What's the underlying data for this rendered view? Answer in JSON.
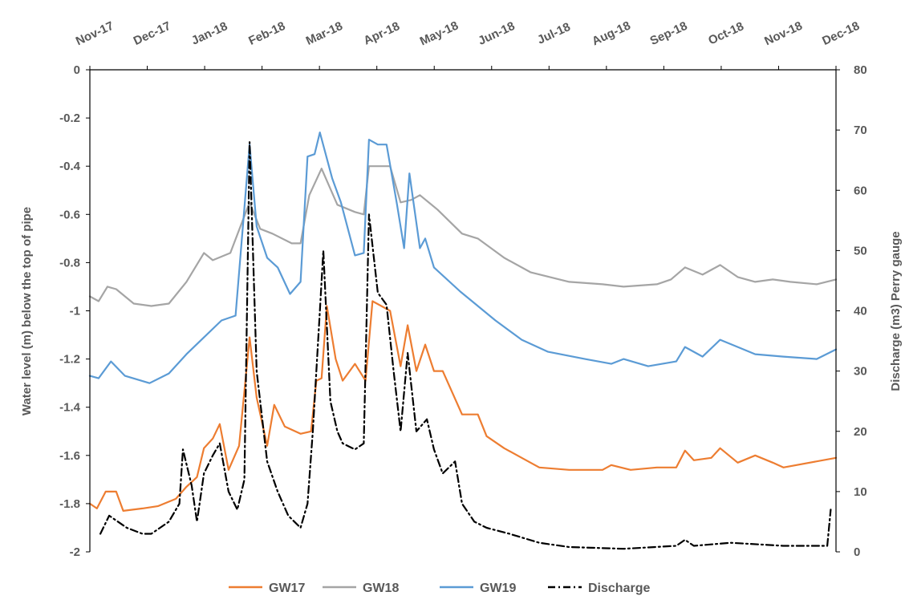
{
  "chart_data": {
    "type": "line",
    "title": "",
    "x_ticks": [
      "Nov-17",
      "Dec-17",
      "Jan-18",
      "Feb-18",
      "Mar-18",
      "Apr-18",
      "May-18",
      "Jun-18",
      "Jul-18",
      "Aug-18",
      "Sep-18",
      "Oct-18",
      "Nov-18",
      "Dec-18"
    ],
    "x_range": [
      "2017-11-01",
      "2018-12-31"
    ],
    "left_axis": {
      "label": "Water level (m) below the top of pipe",
      "ylim": [
        -2,
        0
      ],
      "ticks": [
        "0",
        "-0.2",
        "-0.4",
        "-0.6",
        "-0.8",
        "-1",
        "-1.2",
        "-1.4",
        "-1.6",
        "-1.8",
        "-2"
      ],
      "tick_values": [
        0,
        -0.2,
        -0.4,
        -0.6,
        -0.8,
        -1,
        -1.2,
        -1.4,
        -1.6,
        -1.8,
        -2
      ]
    },
    "right_axis": {
      "label": "Discharge (m3) Perry gauge",
      "ylim": [
        0,
        80
      ],
      "ticks": [
        "0",
        "10",
        "20",
        "30",
        "40",
        "50",
        "60",
        "70",
        "80"
      ],
      "tick_values": [
        0,
        10,
        20,
        30,
        40,
        50,
        60,
        70,
        80
      ]
    },
    "grid": false,
    "legend_position": "bottom",
    "series": [
      {
        "name": "GW17",
        "axis": "left",
        "color": "#ED7D31",
        "dash": "solid",
        "points": [
          [
            "2017-11-01",
            -1.8
          ],
          [
            "2017-11-05",
            -1.82
          ],
          [
            "2017-11-10",
            -1.75
          ],
          [
            "2017-11-16",
            -1.75
          ],
          [
            "2017-11-20",
            -1.83
          ],
          [
            "2017-12-01",
            -1.82
          ],
          [
            "2017-12-10",
            -1.81
          ],
          [
            "2017-12-20",
            -1.78
          ],
          [
            "2017-12-26",
            -1.73
          ],
          [
            "2018-01-01",
            -1.69
          ],
          [
            "2018-01-05",
            -1.57
          ],
          [
            "2018-01-10",
            -1.53
          ],
          [
            "2018-01-14",
            -1.47
          ],
          [
            "2018-01-19",
            -1.66
          ],
          [
            "2018-01-25",
            -1.56
          ],
          [
            "2018-01-31",
            -1.11
          ],
          [
            "2018-02-04",
            -1.36
          ],
          [
            "2018-02-10",
            -1.56
          ],
          [
            "2018-02-14",
            -1.39
          ],
          [
            "2018-02-20",
            -1.48
          ],
          [
            "2018-03-01",
            -1.51
          ],
          [
            "2018-03-07",
            -1.5
          ],
          [
            "2018-03-10",
            -1.29
          ],
          [
            "2018-03-13",
            -1.28
          ],
          [
            "2018-03-16",
            -0.98
          ],
          [
            "2018-03-21",
            -1.2
          ],
          [
            "2018-03-25",
            -1.29
          ],
          [
            "2018-04-01",
            -1.22
          ],
          [
            "2018-04-07",
            -1.29
          ],
          [
            "2018-04-11",
            -0.96
          ],
          [
            "2018-04-21",
            -1.0
          ],
          [
            "2018-04-27",
            -1.23
          ],
          [
            "2018-05-01",
            -1.06
          ],
          [
            "2018-05-06",
            -1.25
          ],
          [
            "2018-05-11",
            -1.14
          ],
          [
            "2018-05-16",
            -1.25
          ],
          [
            "2018-05-21",
            -1.25
          ],
          [
            "2018-06-01",
            -1.43
          ],
          [
            "2018-06-10",
            -1.43
          ],
          [
            "2018-06-15",
            -1.52
          ],
          [
            "2018-06-25",
            -1.57
          ],
          [
            "2018-07-05",
            -1.61
          ],
          [
            "2018-07-15",
            -1.65
          ],
          [
            "2018-08-01",
            -1.66
          ],
          [
            "2018-08-20",
            -1.66
          ],
          [
            "2018-08-25",
            -1.64
          ],
          [
            "2018-09-05",
            -1.66
          ],
          [
            "2018-09-20",
            -1.65
          ],
          [
            "2018-10-01",
            -1.65
          ],
          [
            "2018-10-06",
            -1.58
          ],
          [
            "2018-10-11",
            -1.62
          ],
          [
            "2018-10-21",
            -1.61
          ],
          [
            "2018-10-26",
            -1.57
          ],
          [
            "2018-11-05",
            -1.63
          ],
          [
            "2018-11-15",
            -1.6
          ],
          [
            "2018-11-25",
            -1.63
          ],
          [
            "2018-12-01",
            -1.65
          ],
          [
            "2018-12-31",
            -1.61
          ]
        ]
      },
      {
        "name": "GW18",
        "axis": "left",
        "color": "#A5A5A5",
        "dash": "solid",
        "points": [
          [
            "2017-11-01",
            -0.94
          ],
          [
            "2017-11-06",
            -0.96
          ],
          [
            "2017-11-11",
            -0.9
          ],
          [
            "2017-11-16",
            -0.91
          ],
          [
            "2017-11-26",
            -0.97
          ],
          [
            "2017-12-06",
            -0.98
          ],
          [
            "2017-12-16",
            -0.97
          ],
          [
            "2017-12-26",
            -0.88
          ],
          [
            "2018-01-05",
            -0.76
          ],
          [
            "2018-01-10",
            -0.79
          ],
          [
            "2018-01-20",
            -0.76
          ],
          [
            "2018-01-31",
            -0.55
          ],
          [
            "2018-02-06",
            -0.66
          ],
          [
            "2018-02-13",
            -0.68
          ],
          [
            "2018-02-24",
            -0.72
          ],
          [
            "2018-03-01",
            -0.72
          ],
          [
            "2018-03-06",
            -0.52
          ],
          [
            "2018-03-13",
            -0.41
          ],
          [
            "2018-03-22",
            -0.56
          ],
          [
            "2018-04-01",
            -0.59
          ],
          [
            "2018-04-06",
            -0.6
          ],
          [
            "2018-04-09",
            -0.4
          ],
          [
            "2018-04-21",
            -0.4
          ],
          [
            "2018-04-27",
            -0.55
          ],
          [
            "2018-05-03",
            -0.54
          ],
          [
            "2018-05-08",
            -0.52
          ],
          [
            "2018-05-18",
            -0.58
          ],
          [
            "2018-06-01",
            -0.68
          ],
          [
            "2018-06-10",
            -0.7
          ],
          [
            "2018-06-25",
            -0.78
          ],
          [
            "2018-07-10",
            -0.84
          ],
          [
            "2018-08-01",
            -0.88
          ],
          [
            "2018-08-20",
            -0.89
          ],
          [
            "2018-09-01",
            -0.9
          ],
          [
            "2018-09-20",
            -0.89
          ],
          [
            "2018-09-28",
            -0.87
          ],
          [
            "2018-10-06",
            -0.82
          ],
          [
            "2018-10-16",
            -0.85
          ],
          [
            "2018-10-26",
            -0.81
          ],
          [
            "2018-11-05",
            -0.86
          ],
          [
            "2018-11-15",
            -0.88
          ],
          [
            "2018-11-25",
            -0.87
          ],
          [
            "2018-12-05",
            -0.88
          ],
          [
            "2018-12-20",
            -0.89
          ],
          [
            "2018-12-31",
            -0.87
          ]
        ]
      },
      {
        "name": "GW19",
        "axis": "left",
        "color": "#5B9BD5",
        "dash": "solid",
        "points": [
          [
            "2017-11-01",
            -1.27
          ],
          [
            "2017-11-06",
            -1.28
          ],
          [
            "2017-11-13",
            -1.21
          ],
          [
            "2017-11-21",
            -1.27
          ],
          [
            "2017-12-05",
            -1.3
          ],
          [
            "2017-12-16",
            -1.26
          ],
          [
            "2017-12-26",
            -1.18
          ],
          [
            "2018-01-05",
            -1.11
          ],
          [
            "2018-01-15",
            -1.04
          ],
          [
            "2018-01-23",
            -1.02
          ],
          [
            "2018-01-31",
            -0.31
          ],
          [
            "2018-02-04",
            -0.65
          ],
          [
            "2018-02-10",
            -0.78
          ],
          [
            "2018-02-16",
            -0.82
          ],
          [
            "2018-02-23",
            -0.93
          ],
          [
            "2018-03-01",
            -0.88
          ],
          [
            "2018-03-05",
            -0.36
          ],
          [
            "2018-03-09",
            -0.35
          ],
          [
            "2018-03-12",
            -0.26
          ],
          [
            "2018-03-19",
            -0.45
          ],
          [
            "2018-03-24",
            -0.55
          ],
          [
            "2018-04-01",
            -0.77
          ],
          [
            "2018-04-06",
            -0.76
          ],
          [
            "2018-04-09",
            -0.29
          ],
          [
            "2018-04-14",
            -0.31
          ],
          [
            "2018-04-19",
            -0.31
          ],
          [
            "2018-04-25",
            -0.56
          ],
          [
            "2018-04-29",
            -0.74
          ],
          [
            "2018-05-02",
            -0.43
          ],
          [
            "2018-05-08",
            -0.74
          ],
          [
            "2018-05-11",
            -0.7
          ],
          [
            "2018-05-16",
            -0.82
          ],
          [
            "2018-05-31",
            -0.92
          ],
          [
            "2018-06-10",
            -0.98
          ],
          [
            "2018-06-20",
            -1.04
          ],
          [
            "2018-07-05",
            -1.12
          ],
          [
            "2018-07-20",
            -1.17
          ],
          [
            "2018-08-10",
            -1.2
          ],
          [
            "2018-08-25",
            -1.22
          ],
          [
            "2018-09-01",
            -1.2
          ],
          [
            "2018-09-15",
            -1.23
          ],
          [
            "2018-10-01",
            -1.21
          ],
          [
            "2018-10-06",
            -1.15
          ],
          [
            "2018-10-16",
            -1.19
          ],
          [
            "2018-10-26",
            -1.12
          ],
          [
            "2018-11-05",
            -1.15
          ],
          [
            "2018-11-15",
            -1.18
          ],
          [
            "2018-12-01",
            -1.19
          ],
          [
            "2018-12-20",
            -1.2
          ],
          [
            "2018-12-31",
            -1.16
          ]
        ]
      },
      {
        "name": "Discharge",
        "axis": "right",
        "color": "#000000",
        "dash": "dash-dot",
        "points": [
          [
            "2017-11-07",
            3
          ],
          [
            "2017-11-12",
            6
          ],
          [
            "2017-11-22",
            4
          ],
          [
            "2017-12-01",
            3
          ],
          [
            "2017-12-06",
            3
          ],
          [
            "2017-12-11",
            4
          ],
          [
            "2017-12-16",
            5
          ],
          [
            "2017-12-22",
            8
          ],
          [
            "2017-12-24",
            17
          ],
          [
            "2017-12-29",
            11
          ],
          [
            "2018-01-01",
            5
          ],
          [
            "2018-01-05",
            13
          ],
          [
            "2018-01-10",
            16
          ],
          [
            "2018-01-14",
            18
          ],
          [
            "2018-01-19",
            10
          ],
          [
            "2018-01-24",
            7
          ],
          [
            "2018-01-28",
            12
          ],
          [
            "2018-01-31",
            68
          ],
          [
            "2018-02-04",
            30
          ],
          [
            "2018-02-10",
            15
          ],
          [
            "2018-02-16",
            10
          ],
          [
            "2018-02-22",
            6
          ],
          [
            "2018-03-01",
            4
          ],
          [
            "2018-03-05",
            8
          ],
          [
            "2018-03-08",
            20
          ],
          [
            "2018-03-12",
            40
          ],
          [
            "2018-03-14",
            50
          ],
          [
            "2018-03-18",
            25
          ],
          [
            "2018-03-22",
            20
          ],
          [
            "2018-03-25",
            18
          ],
          [
            "2018-04-01",
            17
          ],
          [
            "2018-04-06",
            18
          ],
          [
            "2018-04-09",
            56
          ],
          [
            "2018-04-14",
            43
          ],
          [
            "2018-04-19",
            41
          ],
          [
            "2018-04-23",
            30
          ],
          [
            "2018-04-27",
            20
          ],
          [
            "2018-05-01",
            33
          ],
          [
            "2018-05-06",
            20
          ],
          [
            "2018-05-12",
            22
          ],
          [
            "2018-05-16",
            17
          ],
          [
            "2018-05-21",
            13
          ],
          [
            "2018-05-28",
            15
          ],
          [
            "2018-06-01",
            8
          ],
          [
            "2018-06-08",
            5
          ],
          [
            "2018-06-15",
            4
          ],
          [
            "2018-06-28",
            3
          ],
          [
            "2018-07-15",
            1.5
          ],
          [
            "2018-08-01",
            0.8
          ],
          [
            "2018-09-01",
            0.5
          ],
          [
            "2018-10-01",
            1
          ],
          [
            "2018-10-06",
            2
          ],
          [
            "2018-10-11",
            1
          ],
          [
            "2018-11-01",
            1.5
          ],
          [
            "2018-12-01",
            1
          ],
          [
            "2018-12-26",
            1
          ],
          [
            "2018-12-28",
            7
          ]
        ]
      }
    ]
  }
}
